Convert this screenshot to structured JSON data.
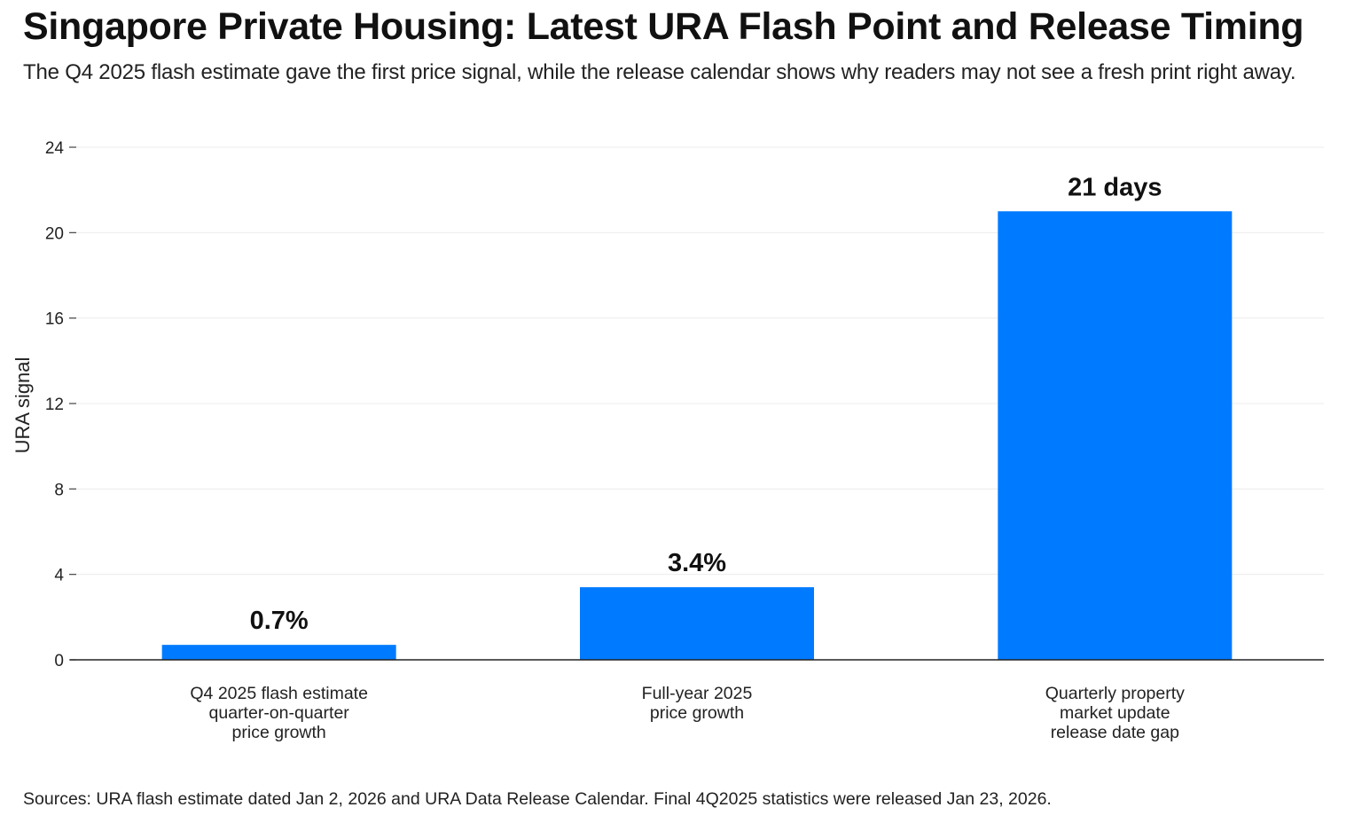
{
  "header": {
    "title": "Singapore Private Housing: Latest URA Flash Point and Release Timing",
    "subtitle": "The Q4 2025 flash estimate gave the first price signal, while the release calendar shows why readers may not see a fresh print right away."
  },
  "footer": {
    "source": "Sources: URA flash estimate dated Jan 2, 2026 and URA Data Release Calendar. Final 4Q2025 statistics were released Jan 23, 2026."
  },
  "chart_data": {
    "type": "bar",
    "title": "Singapore Private Housing: Latest URA Flash Point and Release Timing",
    "xlabel": "",
    "ylabel": "URA signal",
    "ylim": [
      0,
      24
    ],
    "yticks": [
      0,
      4,
      8,
      12,
      16,
      20,
      24
    ],
    "grid": true,
    "legend": "none",
    "bar_color": "#007BFF",
    "categories": [
      [
        "Q4 2025 flash estimate",
        "quarter-on-quarter",
        "price growth"
      ],
      [
        "Full-year 2025",
        "price growth"
      ],
      [
        "Quarterly property",
        "market update",
        "release date gap"
      ]
    ],
    "values": [
      0.7,
      3.4,
      21
    ],
    "data_labels": [
      "0.7%",
      "3.4%",
      "21 days"
    ]
  }
}
